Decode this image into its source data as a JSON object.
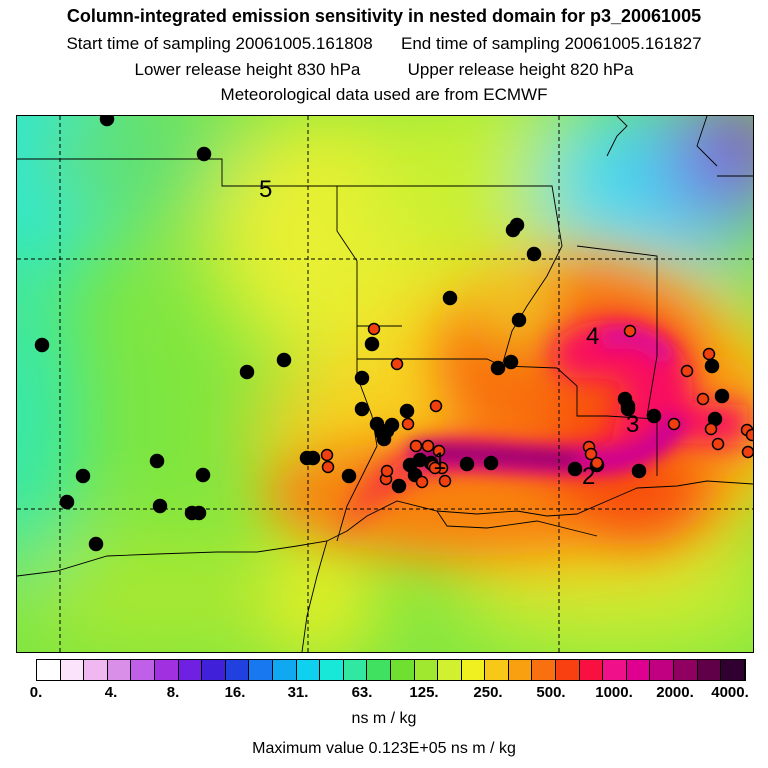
{
  "header": {
    "title": "Column-integrated emission sensitivity in nested domain for p3_20061005",
    "start_label": "Start time of sampling 20061005.161808",
    "end_label": "End time of sampling 20061005.161827",
    "lower_label": "Lower release height  830 hPa",
    "upper_label": "Upper release height  820 hPa",
    "met_label": "Meteorological data used are from ECMWF"
  },
  "map": {
    "labels": [
      "1",
      "2",
      "3",
      "4",
      "5"
    ]
  },
  "colorbar": {
    "colors": [
      "#ffffff",
      "#fbe4fb",
      "#f0b8f0",
      "#d98ee8",
      "#c060e8",
      "#a030e0",
      "#7020e0",
      "#4020d8",
      "#2040e0",
      "#1878f0",
      "#10a8f0",
      "#10d0f0",
      "#18e8d8",
      "#30e8a0",
      "#40e060",
      "#70e030",
      "#a0e830",
      "#d0f030",
      "#f0f020",
      "#f8c818",
      "#f8a010",
      "#f87010",
      "#f84010",
      "#f81040",
      "#f0108a",
      "#e00090",
      "#c00080",
      "#900060",
      "#600048",
      "#300030"
    ],
    "ticks": [
      "0.",
      "4.",
      "8.",
      "16.",
      "31.",
      "63.",
      "125.",
      "250.",
      "500.",
      "1000.",
      "2000.",
      "4000."
    ],
    "unit": "ns m / kg"
  },
  "footer": {
    "max_value": "Maximum value  0.123E+05 ns m / kg"
  },
  "stations": {
    "count_black": 60,
    "count_red": 30
  }
}
